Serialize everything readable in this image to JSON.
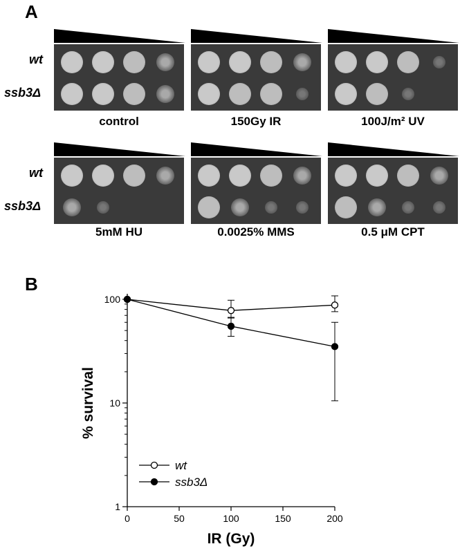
{
  "panel_a": {
    "letter": "A",
    "strains": [
      "wt",
      "ssb3Δ"
    ],
    "conditions": [
      "control",
      "150Gy IR",
      "100J/m² UV",
      "5mM HU",
      "0.0025% MMS",
      "0.5 μM CPT"
    ]
  },
  "panel_b": {
    "letter": "B"
  },
  "chart_data": {
    "type": "line",
    "xlabel": "IR (Gy)",
    "ylabel": "% survival",
    "xlim": [
      0,
      200
    ],
    "ylim": [
      1,
      100
    ],
    "y_scale": "log",
    "x_ticks": [
      "0",
      "50",
      "100",
      "150",
      "200"
    ],
    "y_ticks": [
      "1",
      "10",
      "100"
    ],
    "legend_position": "bottom-left",
    "series": [
      {
        "name": "wt",
        "marker": "open-circle",
        "x": [
          0,
          100,
          200
        ],
        "y": [
          100,
          78,
          88
        ],
        "err_low": [
          100,
          66,
          76
        ],
        "err_high": [
          100,
          98,
          108
        ]
      },
      {
        "name": "ssb3Δ",
        "marker": "filled-circle",
        "x": [
          0,
          100,
          200
        ],
        "y": [
          100,
          55,
          35
        ],
        "err_low": [
          100,
          44,
          10.5
        ],
        "err_high": [
          100,
          67,
          60
        ]
      }
    ]
  }
}
